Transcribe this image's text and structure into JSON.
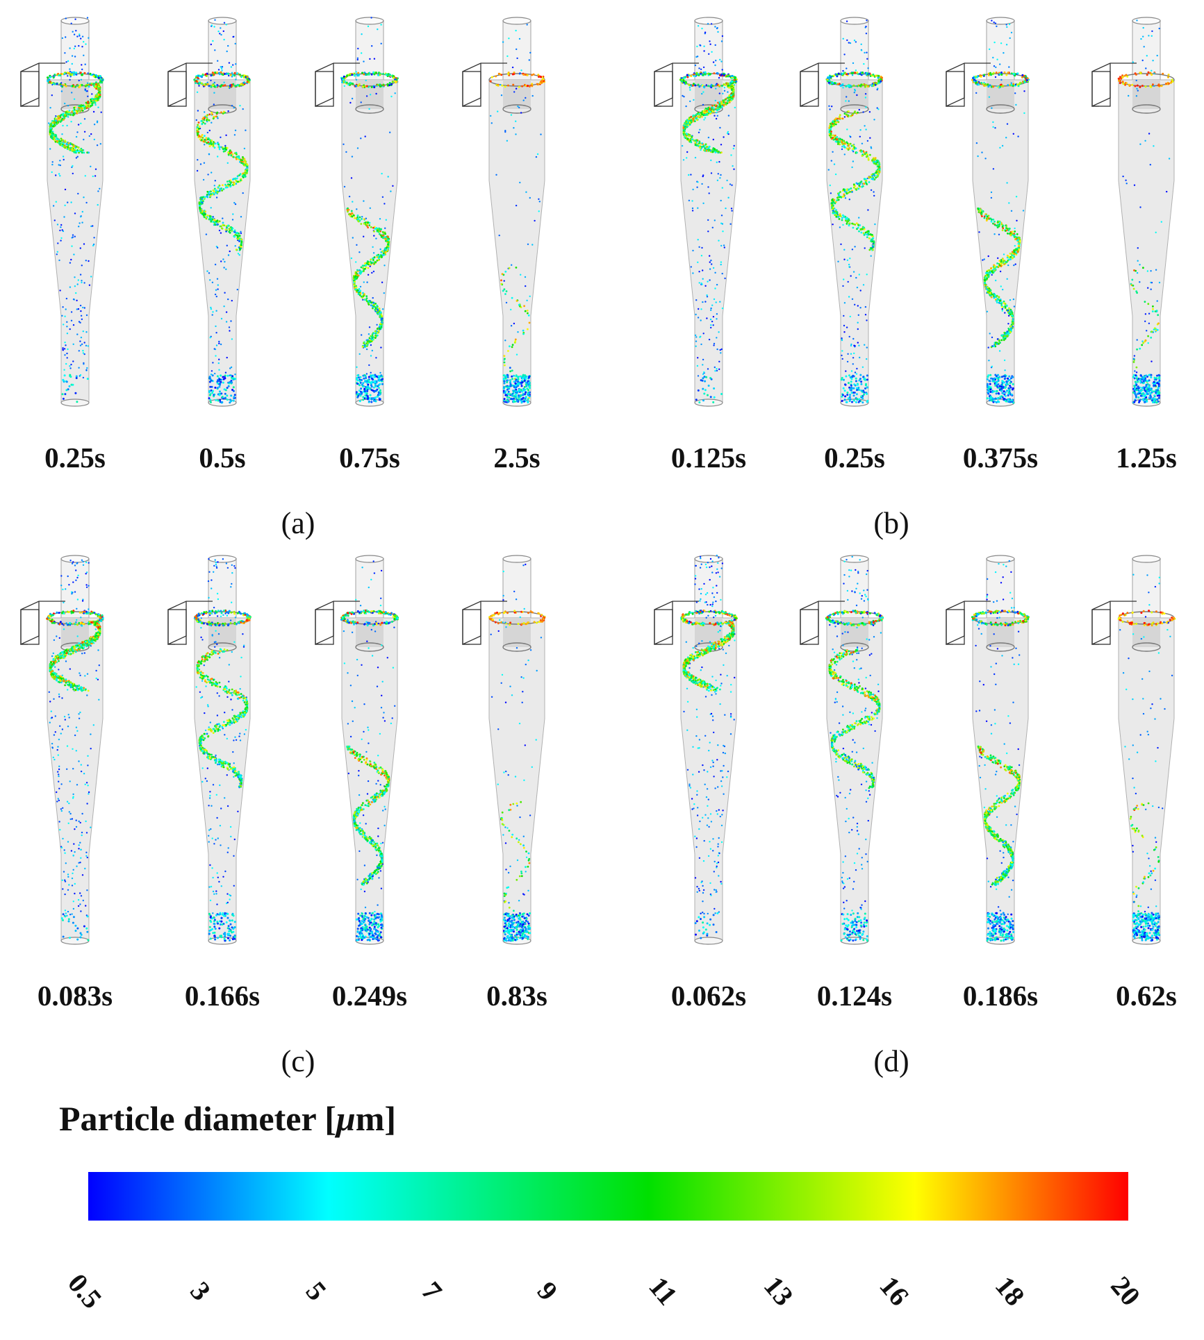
{
  "panels": [
    {
      "label": "(a)",
      "times": [
        "0.25s",
        "0.5s",
        "0.75s",
        "2.5s"
      ]
    },
    {
      "label": "(b)",
      "times": [
        "0.125s",
        "0.25s",
        "0.375s",
        "1.25s"
      ]
    },
    {
      "label": "(c)",
      "times": [
        "0.083s",
        "0.166s",
        "0.249s",
        "0.83s"
      ]
    },
    {
      "label": "(d)",
      "times": [
        "0.062s",
        "0.124s",
        "0.186s",
        "0.62s"
      ]
    }
  ],
  "stage_progress": [
    0.1,
    0.45,
    0.8,
    1.0
  ],
  "colorbar": {
    "title_main": "Particle diameter [",
    "title_mu": "μ",
    "title_end": "m]",
    "ticks": [
      "0.5",
      "3",
      "5",
      "7",
      "9",
      "11",
      "13",
      "16",
      "18",
      "20"
    ],
    "stops": [
      {
        "value": 0.5,
        "color": "#0000ff"
      },
      {
        "value": 5,
        "color": "#00ffff"
      },
      {
        "value": 11,
        "color": "#00e000"
      },
      {
        "value": 16,
        "color": "#ffff00"
      },
      {
        "value": 20,
        "color": "#ff0000"
      }
    ]
  },
  "colors": {
    "cyclone_body": "#e6e6e6",
    "cyclone_edge": "#b0b0b0",
    "inlet_edge": "#333333"
  }
}
